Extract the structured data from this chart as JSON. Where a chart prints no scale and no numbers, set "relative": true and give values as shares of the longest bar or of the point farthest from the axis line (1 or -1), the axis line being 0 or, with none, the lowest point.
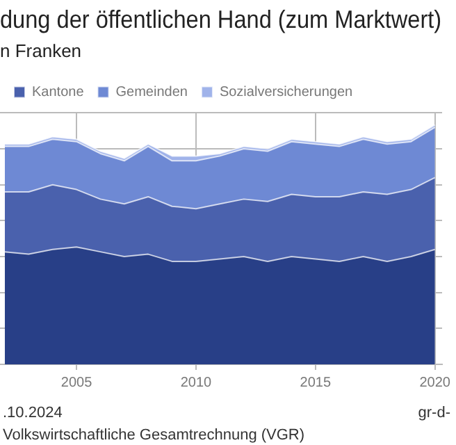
{
  "chart_data": {
    "type": "area",
    "title": "dung der öffentlichen Hand (zum Marktwert)",
    "subtitle": "n Franken",
    "stacked": true,
    "relative": true,
    "grid": true,
    "legend": "top left",
    "x": [
      2002,
      2003,
      2004,
      2005,
      2006,
      2007,
      2008,
      2009,
      2010,
      2011,
      2012,
      2013,
      2014,
      2015,
      2016,
      2017,
      2018,
      2019,
      2020
    ],
    "xlim": [
      2001.8,
      2020.3
    ],
    "xticks": [
      2005,
      2010,
      2015,
      2020
    ],
    "series": [
      {
        "color": "#283f87",
        "values": [
          0.47,
          0.46,
          0.48,
          0.49,
          0.47,
          0.45,
          0.46,
          0.43,
          0.43,
          0.44,
          0.45,
          0.43,
          0.45,
          0.44,
          0.43,
          0.45,
          0.43,
          0.45,
          0.48
        ]
      },
      {
        "name": "Kantone",
        "color": "#4a61ad",
        "values": [
          0.25,
          0.26,
          0.27,
          0.24,
          0.22,
          0.22,
          0.24,
          0.23,
          0.22,
          0.23,
          0.24,
          0.25,
          0.26,
          0.26,
          0.27,
          0.27,
          0.28,
          0.28,
          0.3
        ]
      },
      {
        "name": "Gemeinden",
        "color": "#6e89d4",
        "values": [
          0.19,
          0.19,
          0.19,
          0.2,
          0.19,
          0.18,
          0.21,
          0.19,
          0.2,
          0.2,
          0.21,
          0.21,
          0.22,
          0.22,
          0.21,
          0.22,
          0.21,
          0.2,
          0.21
        ]
      },
      {
        "name": "Sozialversicherungen",
        "color": "#a0b3ea",
        "values": [
          0.01,
          0.01,
          0.01,
          0.01,
          0.01,
          0.01,
          0.01,
          0.02,
          0.02,
          0.01,
          0.01,
          0.01,
          0.01,
          0.01,
          0.01,
          0.01,
          0.01,
          0.01,
          0.01
        ]
      }
    ],
    "annotations": [
      ".10.2024",
      "gr-d-",
      "Volkswirtschaftliche Gesamtrechnung (VGR)"
    ]
  }
}
